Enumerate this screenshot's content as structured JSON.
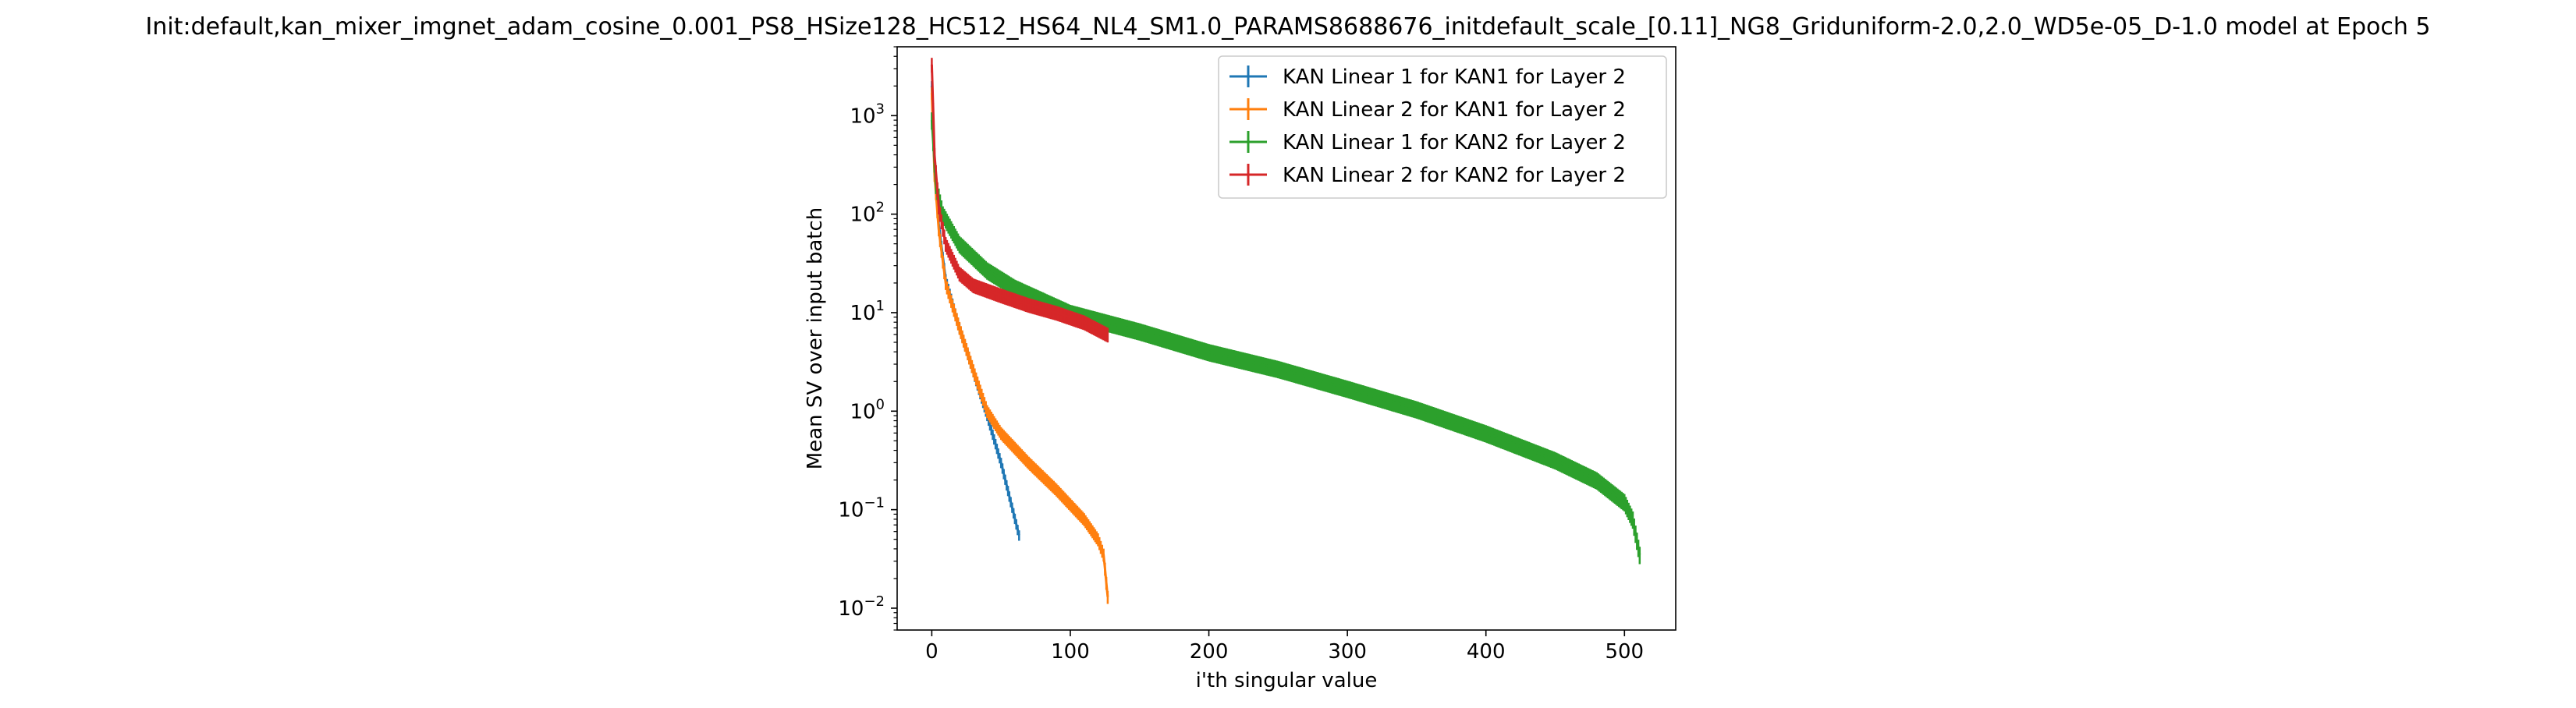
{
  "chart_data": {
    "type": "line",
    "title": "Init:default,kan_mixer_imgnet_adam_cosine_0.001_PS8_HSize128_HC512_HS64_NL4_SM1.0_PARAMS8688676_initdefault_scale_[0.11]_NG8_Griduniform-2.0,2.0_WD5e-05_D-1.0 model at Epoch 5",
    "xlabel": "i'th singular value",
    "ylabel": "Mean SV over input batch",
    "xlim": [
      -25,
      537
    ],
    "ylim": [
      0.006,
      5000
    ],
    "yscale": "log",
    "x_ticks": [
      0,
      100,
      200,
      300,
      400,
      500
    ],
    "y_ticks": [
      {
        "value": 0.01,
        "base": "10",
        "exp": "−2"
      },
      {
        "value": 0.1,
        "base": "10",
        "exp": "−1"
      },
      {
        "value": 1,
        "base": "10",
        "exp": "0"
      },
      {
        "value": 10,
        "base": "10",
        "exp": "1"
      },
      {
        "value": 100,
        "base": "10",
        "exp": "2"
      },
      {
        "value": 1000,
        "base": "10",
        "exp": "3"
      }
    ],
    "grid": false,
    "legend_position": "top-right",
    "error_bars": true,
    "series": [
      {
        "name": "KAN Linear 1 for KAN1 for Layer 2",
        "color": "#1f77b4",
        "n": 64,
        "anchors": [
          [
            0,
            2000
          ],
          [
            2,
            300
          ],
          [
            5,
            80
          ],
          [
            10,
            22
          ],
          [
            20,
            7
          ],
          [
            30,
            2.5
          ],
          [
            40,
            0.9
          ],
          [
            50,
            0.3
          ],
          [
            57,
            0.12
          ],
          [
            63,
            0.055
          ]
        ],
        "err_frac": 0.12
      },
      {
        "name": "KAN Linear 2 for KAN1 for Layer 2",
        "color": "#ff7f0e",
        "n": 128,
        "anchors": [
          [
            0,
            1700
          ],
          [
            2,
            250
          ],
          [
            5,
            70
          ],
          [
            10,
            20
          ],
          [
            20,
            7
          ],
          [
            30,
            2.6
          ],
          [
            40,
            1.0
          ],
          [
            50,
            0.6
          ],
          [
            70,
            0.3
          ],
          [
            90,
            0.16
          ],
          [
            110,
            0.08
          ],
          [
            120,
            0.05
          ],
          [
            124,
            0.035
          ],
          [
            127,
            0.013
          ]
        ],
        "err_frac": 0.15
      },
      {
        "name": "KAN Linear 1 for KAN2 for Layer 2",
        "color": "#2ca02c",
        "n": 512,
        "anchors": [
          [
            0,
            900
          ],
          [
            3,
            200
          ],
          [
            8,
            100
          ],
          [
            20,
            50
          ],
          [
            40,
            27
          ],
          [
            60,
            18
          ],
          [
            100,
            10
          ],
          [
            150,
            6.5
          ],
          [
            200,
            4
          ],
          [
            250,
            2.7
          ],
          [
            300,
            1.7
          ],
          [
            350,
            1.05
          ],
          [
            400,
            0.6
          ],
          [
            450,
            0.32
          ],
          [
            480,
            0.2
          ],
          [
            500,
            0.12
          ],
          [
            506,
            0.08
          ],
          [
            511,
            0.035
          ]
        ],
        "err_frac": 0.2
      },
      {
        "name": "KAN Linear 2 for KAN2 for Layer 2",
        "color": "#d62728",
        "n": 128,
        "anchors": [
          [
            0,
            3300
          ],
          [
            2,
            400
          ],
          [
            5,
            120
          ],
          [
            10,
            50
          ],
          [
            20,
            25
          ],
          [
            30,
            19
          ],
          [
            50,
            15
          ],
          [
            70,
            12
          ],
          [
            90,
            10
          ],
          [
            110,
            8
          ],
          [
            127,
            6
          ]
        ],
        "err_frac": 0.17
      }
    ]
  }
}
